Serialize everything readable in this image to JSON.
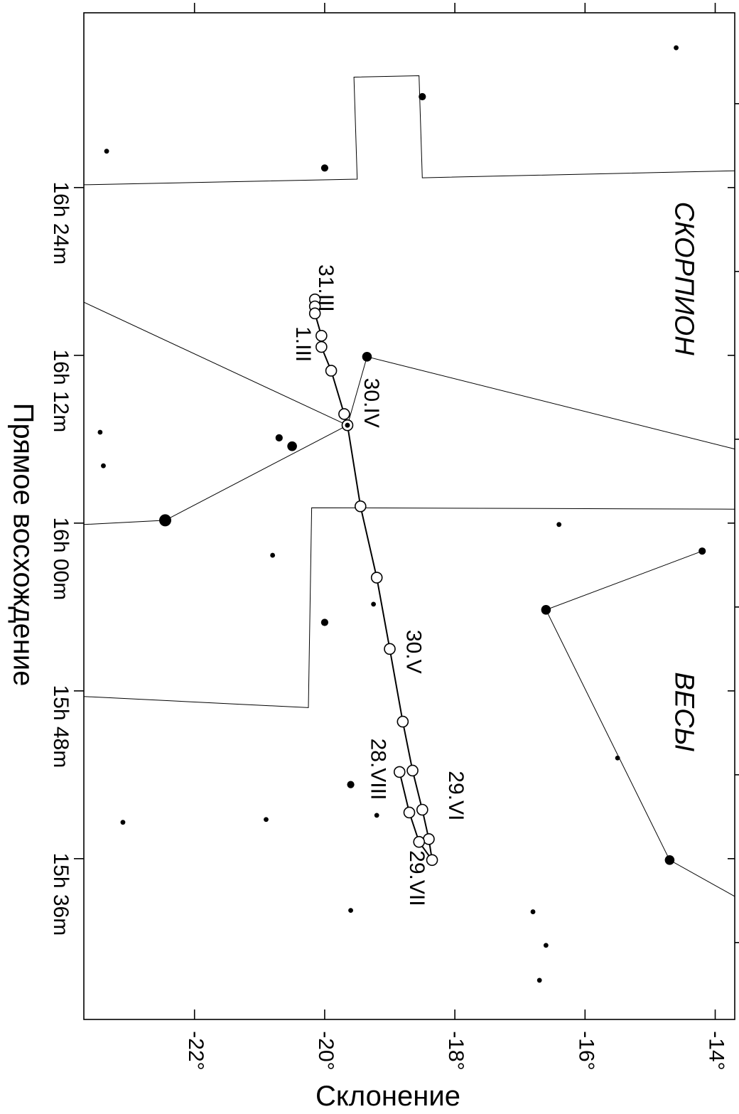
{
  "chart_data": {
    "type": "scatter",
    "title": "",
    "xlabel": "Склонение",
    "ylabel": "Прямое восхождение",
    "x_unit": "degrees",
    "y_unit": "RA minutes after 15h 00m",
    "xlim": [
      -23.7,
      -13.7
    ],
    "ylim": [
      24.5,
      96.5
    ],
    "x_ticks": [
      {
        "value": -22,
        "label": "-22°"
      },
      {
        "value": -20,
        "label": "-20°"
      },
      {
        "value": -18,
        "label": "-18°"
      },
      {
        "value": -16,
        "label": "-16°"
      },
      {
        "value": -14,
        "label": "-14°"
      }
    ],
    "y_ticks": [
      {
        "value": 36,
        "label": "15h 36m"
      },
      {
        "value": 48,
        "label": "15h 48m"
      },
      {
        "value": 60,
        "label": "16h 00m"
      },
      {
        "value": 72,
        "label": "16h 12m"
      },
      {
        "value": 84,
        "label": "16h 24m"
      }
    ],
    "minor_y_ticks": [
      30,
      42,
      54,
      66,
      78,
      90
    ],
    "constellation_labels": [
      {
        "text": "СКОРПИОН",
        "x": -14.5,
        "y": 77.5
      },
      {
        "text": "ВЕСЫ",
        "x": -14.5,
        "y": 46.5
      }
    ],
    "track": {
      "name": "",
      "points": [
        {
          "x": -20.15,
          "y": 76.0
        },
        {
          "x": -20.15,
          "y": 75.5
        },
        {
          "x": -20.15,
          "y": 75.0
        },
        {
          "x": -20.05,
          "y": 73.4
        },
        {
          "x": -20.05,
          "y": 72.6
        },
        {
          "x": -19.9,
          "y": 70.9
        },
        {
          "x": -19.7,
          "y": 67.8
        },
        {
          "x": -19.65,
          "y": 67.0
        },
        {
          "x": -19.45,
          "y": 61.2
        },
        {
          "x": -19.2,
          "y": 56.1
        },
        {
          "x": -19.0,
          "y": 51.0
        },
        {
          "x": -18.8,
          "y": 45.8
        },
        {
          "x": -18.65,
          "y": 42.3
        },
        {
          "x": -18.5,
          "y": 39.5
        },
        {
          "x": -18.4,
          "y": 37.4
        },
        {
          "x": -18.35,
          "y": 35.9
        },
        {
          "x": -18.55,
          "y": 37.2
        },
        {
          "x": -18.7,
          "y": 39.3
        },
        {
          "x": -18.85,
          "y": 42.2
        }
      ]
    },
    "date_labels": [
      {
        "text": "31.III",
        "x": -20.0,
        "y": 76.8
      },
      {
        "text": "1.III",
        "x": -20.35,
        "y": 72.8
      },
      {
        "text": "30.IV",
        "x": -19.3,
        "y": 68.6
      },
      {
        "text": "30.V",
        "x": -18.65,
        "y": 50.8
      },
      {
        "text": "28.VIII",
        "x": -19.2,
        "y": 42.4
      },
      {
        "text": "29.VI",
        "x": -18.0,
        "y": 40.5
      },
      {
        "text": "29.VII",
        "x": -18.6,
        "y": 34.6
      }
    ],
    "stars": [
      {
        "x": -14.6,
        "y": 94.0,
        "size": 2
      },
      {
        "x": -18.5,
        "y": 90.5,
        "size": 3
      },
      {
        "x": -23.35,
        "y": 86.6,
        "size": 2
      },
      {
        "x": -20.0,
        "y": 85.4,
        "size": 3
      },
      {
        "x": -19.35,
        "y": 71.9,
        "size": 4
      },
      {
        "x": -23.45,
        "y": 66.5,
        "size": 2
      },
      {
        "x": -23.4,
        "y": 64.1,
        "size": 2
      },
      {
        "x": -20.7,
        "y": 66.1,
        "size": 3
      },
      {
        "x": -20.5,
        "y": 65.5,
        "size": 4
      },
      {
        "x": -22.45,
        "y": 60.2,
        "size": 5
      },
      {
        "x": -16.4,
        "y": 59.9,
        "size": 2
      },
      {
        "x": -14.2,
        "y": 58.0,
        "size": 3
      },
      {
        "x": -20.8,
        "y": 57.7,
        "size": 2
      },
      {
        "x": -19.25,
        "y": 54.2,
        "size": 2
      },
      {
        "x": -16.6,
        "y": 53.8,
        "size": 4
      },
      {
        "x": -20.0,
        "y": 52.9,
        "size": 3
      },
      {
        "x": -15.5,
        "y": 43.2,
        "size": 2
      },
      {
        "x": -19.6,
        "y": 41.3,
        "size": 3
      },
      {
        "x": -23.1,
        "y": 38.6,
        "size": 2
      },
      {
        "x": -20.9,
        "y": 38.8,
        "size": 2
      },
      {
        "x": -19.2,
        "y": 39.1,
        "size": 2
      },
      {
        "x": -14.7,
        "y": 35.9,
        "size": 4
      },
      {
        "x": -16.8,
        "y": 32.2,
        "size": 2
      },
      {
        "x": -19.6,
        "y": 32.3,
        "size": 2
      },
      {
        "x": -16.6,
        "y": 29.8,
        "size": 2
      },
      {
        "x": -16.7,
        "y": 27.3,
        "size": 2
      }
    ],
    "boundaries": [
      [
        {
          "x": -23.7,
          "y": 84.2
        },
        {
          "x": -19.5,
          "y": 84.6
        },
        {
          "x": -19.55,
          "y": 91.9
        },
        {
          "x": -18.55,
          "y": 92.0
        },
        {
          "x": -18.5,
          "y": 84.7
        },
        {
          "x": -13.7,
          "y": 85.2
        }
      ],
      [
        {
          "x": -23.7,
          "y": 75.8
        },
        {
          "x": -19.65,
          "y": 67.0
        }
      ],
      [
        {
          "x": -23.7,
          "y": 59.9
        },
        {
          "x": -22.45,
          "y": 60.2
        },
        {
          "x": -19.65,
          "y": 67.0
        }
      ],
      [
        {
          "x": -19.65,
          "y": 67.0
        },
        {
          "x": -19.35,
          "y": 71.9
        },
        {
          "x": -13.7,
          "y": 65.3
        }
      ],
      [
        {
          "x": -23.7,
          "y": 47.6
        },
        {
          "x": -20.25,
          "y": 46.8
        },
        {
          "x": -20.2,
          "y": 61.1
        },
        {
          "x": -13.7,
          "y": 61.0
        }
      ],
      [
        {
          "x": -14.2,
          "y": 58.0
        },
        {
          "x": -16.6,
          "y": 53.8
        },
        {
          "x": -14.7,
          "y": 35.9
        },
        {
          "x": -13.7,
          "y": 33.3
        }
      ]
    ]
  }
}
